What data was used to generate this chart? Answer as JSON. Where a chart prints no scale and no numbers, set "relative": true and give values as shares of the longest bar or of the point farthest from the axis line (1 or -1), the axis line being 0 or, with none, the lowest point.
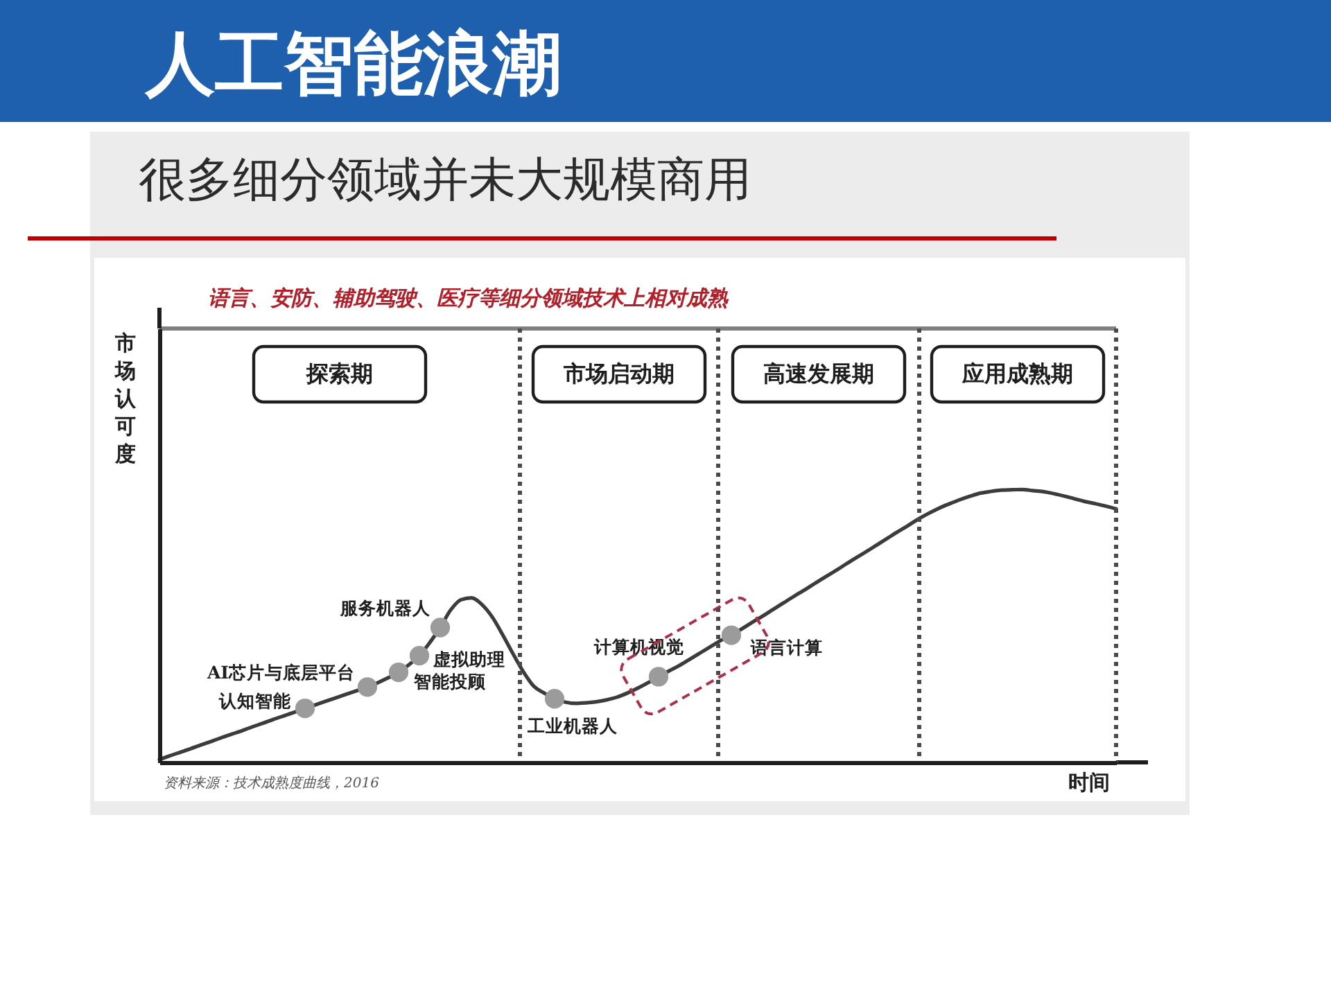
{
  "chart_data": {
    "type": "line",
    "title": "人工智能浪潮",
    "subtitle": "很多细分领域并未大规模商用",
    "xlabel": "时间",
    "ylabel": "市场认可度",
    "relative": true,
    "categories": [
      null,
      null,
      null,
      null,
      null,
      null,
      null,
      null,
      null,
      null,
      null,
      null,
      null,
      null,
      null,
      null,
      null,
      null,
      null,
      null,
      null,
      null,
      null,
      null,
      null,
      null,
      null,
      null,
      null,
      null,
      null,
      null,
      null,
      null,
      null,
      null,
      null,
      null,
      null,
      null,
      null,
      null,
      null,
      null,
      null,
      null,
      null,
      null,
      null,
      null,
      null,
      null,
      null,
      null,
      null,
      null,
      null,
      null,
      null,
      null,
      null,
      null,
      null,
      null,
      null,
      null,
      null,
      null,
      null,
      null,
      null,
      null,
      null,
      null,
      null,
      null,
      null,
      null,
      null,
      null,
      null,
      null,
      null,
      null,
      null,
      null,
      null,
      null,
      null,
      null,
      null,
      null,
      null
    ],
    "series": [
      {
        "color": "#3c3c3c",
        "values": [
          0.01,
          0.024,
          0.037,
          0.05,
          0.064,
          0.077,
          0.091,
          0.104,
          0.117,
          0.131,
          0.144,
          0.158,
          0.171,
          0.184,
          0.198,
          0.211,
          0.224,
          0.237,
          0.25,
          0.263,
          0.276,
          0.292,
          0.31,
          0.33,
          0.358,
          0.391,
          0.439,
          0.494,
          0.558,
          0.596,
          0.603,
          0.579,
          0.533,
          0.468,
          0.398,
          0.332,
          0.279,
          0.254,
          0.233,
          0.221,
          0.216,
          0.218,
          0.222,
          0.229,
          0.239,
          0.254,
          0.272,
          0.292,
          0.314,
          0.335,
          0.355,
          0.378,
          0.401,
          0.424,
          0.447,
          0.466,
          0.489,
          0.513,
          0.536,
          0.56,
          0.584,
          0.608,
          0.631,
          0.655,
          0.679,
          0.702,
          0.726,
          0.75,
          0.773,
          0.797,
          0.821,
          0.845,
          0.868,
          0.892,
          0.913,
          0.932,
          0.948,
          0.963,
          0.976,
          0.987,
          0.993,
          0.998,
          0.999,
          1.0,
          0.996,
          0.992,
          0.985,
          0.976,
          0.966,
          0.956,
          0.948,
          0.939,
          0.929
        ]
      },
      {
        "name": "认知智能",
        "marker": "circle",
        "color": "#9b9b9b",
        "values": [
          null,
          null,
          null,
          null,
          null,
          null,
          null,
          null,
          null,
          null,
          null,
          null,
          null,
          null,
          0.198,
          null,
          null,
          null,
          null,
          null,
          null,
          null,
          null,
          null,
          null,
          null,
          null,
          null,
          null,
          null,
          null,
          null,
          null,
          null,
          null,
          null,
          null,
          null,
          null,
          null,
          null,
          null,
          null,
          null,
          null,
          null,
          null,
          null,
          null,
          null,
          null,
          null,
          null,
          null,
          null,
          null,
          null,
          null,
          null,
          null,
          null,
          null,
          null,
          null,
          null,
          null,
          null,
          null,
          null,
          null,
          null,
          null,
          null,
          null,
          null,
          null,
          null,
          null,
          null,
          null,
          null,
          null,
          null,
          null,
          null,
          null,
          null,
          null,
          null,
          null,
          null,
          null,
          null
        ]
      },
      {
        "name": "AI芯片与底层平台",
        "marker": "circle",
        "color": "#9b9b9b",
        "values": [
          null,
          null,
          null,
          null,
          null,
          null,
          null,
          null,
          null,
          null,
          null,
          null,
          null,
          null,
          null,
          null,
          null,
          null,
          null,
          null,
          0.276,
          null,
          null,
          null,
          null,
          null,
          null,
          null,
          null,
          null,
          null,
          null,
          null,
          null,
          null,
          null,
          null,
          null,
          null,
          null,
          null,
          null,
          null,
          null,
          null,
          null,
          null,
          null,
          null,
          null,
          null,
          null,
          null,
          null,
          null,
          null,
          null,
          null,
          null,
          null,
          null,
          null,
          null,
          null,
          null,
          null,
          null,
          null,
          null,
          null,
          null,
          null,
          null,
          null,
          null,
          null,
          null,
          null,
          null,
          null,
          null,
          null,
          null,
          null,
          null,
          null,
          null,
          null,
          null,
          null,
          null,
          null,
          null
        ]
      },
      {
        "name": "智能投顾",
        "marker": "circle",
        "color": "#9b9b9b",
        "values": [
          null,
          null,
          null,
          null,
          null,
          null,
          null,
          null,
          null,
          null,
          null,
          null,
          null,
          null,
          null,
          null,
          null,
          null,
          null,
          null,
          null,
          null,
          null,
          0.33,
          null,
          null,
          null,
          null,
          null,
          null,
          null,
          null,
          null,
          null,
          null,
          null,
          null,
          null,
          null,
          null,
          null,
          null,
          null,
          null,
          null,
          null,
          null,
          null,
          null,
          null,
          null,
          null,
          null,
          null,
          null,
          null,
          null,
          null,
          null,
          null,
          null,
          null,
          null,
          null,
          null,
          null,
          null,
          null,
          null,
          null,
          null,
          null,
          null,
          null,
          null,
          null,
          null,
          null,
          null,
          null,
          null,
          null,
          null,
          null,
          null,
          null,
          null,
          null,
          null,
          null,
          null,
          null,
          null
        ]
      },
      {
        "name": "虚拟助理",
        "marker": "circle",
        "color": "#9b9b9b",
        "values": [
          null,
          null,
          null,
          null,
          null,
          null,
          null,
          null,
          null,
          null,
          null,
          null,
          null,
          null,
          null,
          null,
          null,
          null,
          null,
          null,
          null,
          null,
          null,
          null,
          null,
          0.391,
          null,
          null,
          null,
          null,
          null,
          null,
          null,
          null,
          null,
          null,
          null,
          null,
          null,
          null,
          null,
          null,
          null,
          null,
          null,
          null,
          null,
          null,
          null,
          null,
          null,
          null,
          null,
          null,
          null,
          null,
          null,
          null,
          null,
          null,
          null,
          null,
          null,
          null,
          null,
          null,
          null,
          null,
          null,
          null,
          null,
          null,
          null,
          null,
          null,
          null,
          null,
          null,
          null,
          null,
          null,
          null,
          null,
          null,
          null,
          null,
          null,
          null,
          null,
          null,
          null,
          null,
          null
        ]
      },
      {
        "name": "服务机器人",
        "marker": "circle",
        "color": "#9b9b9b",
        "values": [
          null,
          null,
          null,
          null,
          null,
          null,
          null,
          null,
          null,
          null,
          null,
          null,
          null,
          null,
          null,
          null,
          null,
          null,
          null,
          null,
          null,
          null,
          null,
          null,
          null,
          null,
          null,
          0.494,
          null,
          null,
          null,
          null,
          null,
          null,
          null,
          null,
          null,
          null,
          null,
          null,
          null,
          null,
          null,
          null,
          null,
          null,
          null,
          null,
          null,
          null,
          null,
          null,
          null,
          null,
          null,
          null,
          null,
          null,
          null,
          null,
          null,
          null,
          null,
          null,
          null,
          null,
          null,
          null,
          null,
          null,
          null,
          null,
          null,
          null,
          null,
          null,
          null,
          null,
          null,
          null,
          null,
          null,
          null,
          null,
          null,
          null,
          null,
          null,
          null,
          null,
          null,
          null,
          null
        ]
      },
      {
        "name": "工业机器人",
        "marker": "circle",
        "color": "#9b9b9b",
        "values": [
          null,
          null,
          null,
          null,
          null,
          null,
          null,
          null,
          null,
          null,
          null,
          null,
          null,
          null,
          null,
          null,
          null,
          null,
          null,
          null,
          null,
          null,
          null,
          null,
          null,
          null,
          null,
          null,
          null,
          null,
          null,
          null,
          null,
          null,
          null,
          null,
          null,
          null,
          0.233,
          null,
          null,
          null,
          null,
          null,
          null,
          null,
          null,
          null,
          null,
          null,
          null,
          null,
          null,
          null,
          null,
          null,
          null,
          null,
          null,
          null,
          null,
          null,
          null,
          null,
          null,
          null,
          null,
          null,
          null,
          null,
          null,
          null,
          null,
          null,
          null,
          null,
          null,
          null,
          null,
          null,
          null,
          null,
          null,
          null,
          null,
          null,
          null,
          null,
          null,
          null,
          null,
          null,
          null
        ]
      },
      {
        "name": "计算机视觉",
        "marker": "circle",
        "color": "#9b9b9b",
        "values": [
          null,
          null,
          null,
          null,
          null,
          null,
          null,
          null,
          null,
          null,
          null,
          null,
          null,
          null,
          null,
          null,
          null,
          null,
          null,
          null,
          null,
          null,
          null,
          null,
          null,
          null,
          null,
          null,
          null,
          null,
          null,
          null,
          null,
          null,
          null,
          null,
          null,
          null,
          null,
          null,
          null,
          null,
          null,
          null,
          null,
          null,
          null,
          null,
          0.314,
          null,
          null,
          null,
          null,
          null,
          null,
          null,
          null,
          null,
          null,
          null,
          null,
          null,
          null,
          null,
          null,
          null,
          null,
          null,
          null,
          null,
          null,
          null,
          null,
          null,
          null,
          null,
          null,
          null,
          null,
          null,
          null,
          null,
          null,
          null,
          null,
          null,
          null,
          null,
          null,
          null,
          null,
          null,
          null
        ]
      },
      {
        "name": "语言计算",
        "marker": "circle",
        "color": "#9b9b9b",
        "values": [
          null,
          null,
          null,
          null,
          null,
          null,
          null,
          null,
          null,
          null,
          null,
          null,
          null,
          null,
          null,
          null,
          null,
          null,
          null,
          null,
          null,
          null,
          null,
          null,
          null,
          null,
          null,
          null,
          null,
          null,
          null,
          null,
          null,
          null,
          null,
          null,
          null,
          null,
          null,
          null,
          null,
          null,
          null,
          null,
          null,
          null,
          null,
          null,
          null,
          null,
          null,
          null,
          null,
          null,
          null,
          0.466,
          null,
          null,
          null,
          null,
          null,
          null,
          null,
          null,
          null,
          null,
          null,
          null,
          null,
          null,
          null,
          null,
          null,
          null,
          null,
          null,
          null,
          null,
          null,
          null,
          null,
          null,
          null,
          null,
          null,
          null,
          null,
          null,
          null,
          null,
          null,
          null,
          null
        ]
      }
    ],
    "annotations": [
      "语言、安防、辅助驾驶、医疗等细分领域技术上相对成熟",
      "探索期",
      "市场启动期",
      "高速发展期",
      "应用成熟期",
      "资料来源：技术成熟度曲线，2016"
    ]
  }
}
